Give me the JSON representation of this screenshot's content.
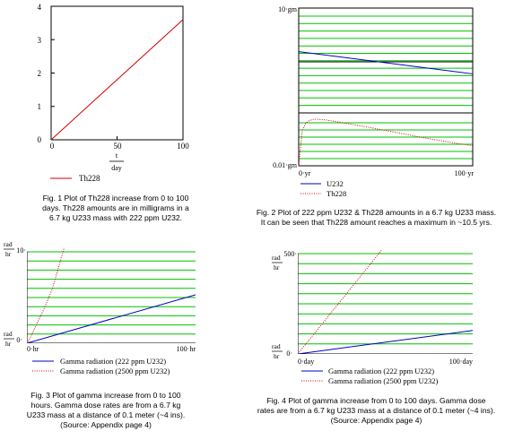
{
  "colors": {
    "grid": "#00c000",
    "axis": "#000000",
    "blue": "#0000c0",
    "red": "#d00000"
  },
  "chart_data": [
    {
      "type": "line",
      "xlim": [
        0,
        100
      ],
      "ylim": [
        0,
        4
      ],
      "xticks": [
        "0",
        "50",
        "100"
      ],
      "yticks": [
        "0",
        "1",
        "2",
        "3",
        "4"
      ],
      "xlabel_num": "t",
      "xlabel_den": "day",
      "grid": false,
      "legend": "bottom-left",
      "series": [
        {
          "name": "Th228",
          "x": [
            0,
            100
          ],
          "y": [
            0,
            3.6
          ]
        }
      ],
      "caption": [
        "Fig. 1  Plot of Th228 increase from 0 to 100",
        "days.  Th228 amounts are in milligrams in a",
        "6.7 kg U233 mass with 222 ppm U232."
      ]
    },
    {
      "type": "line",
      "ylog": true,
      "ytick_top": "10·gm",
      "ytick_bottom": "0.01·gm",
      "xtick_left": "0·yr",
      "xtick_right": "100·yr",
      "grid": true,
      "legend": "bottom-left",
      "series": [
        {
          "name": "U232",
          "x": [
            0,
            100
          ],
          "y": [
            1.48,
            0.56
          ]
        },
        {
          "name": "Th228",
          "x": [
            0,
            2,
            4,
            6,
            8,
            10.5,
            15,
            30,
            50,
            70,
            90,
            100
          ],
          "y": [
            0.01,
            0.045,
            0.064,
            0.072,
            0.076,
            0.077,
            0.075,
            0.062,
            0.047,
            0.035,
            0.027,
            0.024
          ]
        }
      ],
      "caption": [
        "Fig. 2  Plot of 222 ppm U232 & Th228 amounts in a 6.7 kg U233 mass.",
        "It can be seen that Th228 amount reaches a maximum in ~10.5 yrs."
      ]
    },
    {
      "type": "line",
      "ylim": [
        0,
        10
      ],
      "ytick_top_num": "rad",
      "ytick_top_den": "hr",
      "ytick_top_val": "10·",
      "ytick_bottom_num": "rad",
      "ytick_bottom_den": "hr",
      "ytick_bottom_val": "0·",
      "xtick_left": "0·hr",
      "xtick_right": "100·hr",
      "grid": true,
      "legend": "bottom-left",
      "series": [
        {
          "name": "Gamma radiation (222 ppm  U232)",
          "x": [
            0,
            100
          ],
          "y": [
            0,
            5.3
          ]
        },
        {
          "name": "Gamma radiation (2500 ppm  U232)",
          "x": [
            0,
            2,
            5,
            10,
            15,
            18,
            22
          ],
          "y": [
            0,
            0.6,
            1.8,
            3.7,
            5.9,
            7.8,
            10.7
          ]
        }
      ],
      "caption": [
        "Fig. 3  Plot of gamma increase from 0 to 100",
        "hours.  Gamma dose rates are from a 6.7 kg",
        "U233 mass at a distance of 0.1 meter (~4 ins).",
        "(Source: Appendix page 4)"
      ]
    },
    {
      "type": "line",
      "ylim": [
        0,
        500
      ],
      "ytick_top_num": "rad",
      "ytick_top_den": "hr",
      "ytick_top_val": "500·",
      "ytick_bottom_num": "rad",
      "ytick_bottom_den": "hr",
      "ytick_bottom_val": "0·",
      "xtick_left": "0·day",
      "xtick_right": "100·day",
      "grid": true,
      "legend": "bottom-left",
      "series": [
        {
          "name": "Gamma radiation (222 ppm  U232)",
          "x": [
            0,
            100
          ],
          "y": [
            0,
            117
          ]
        },
        {
          "name": "Gamma radiation (2500 ppm  U232)",
          "x": [
            0,
            48
          ],
          "y": [
            0,
            520
          ]
        }
      ],
      "caption": [
        "Fig. 4  Plot of gamma increase from 0 to 100 days.  Gamma dose",
        "rates are from a 6.7 kg U233 mass at a distance of 0.1 meter (~4 ins).",
        "(Source: Appendix page 4)"
      ]
    }
  ]
}
